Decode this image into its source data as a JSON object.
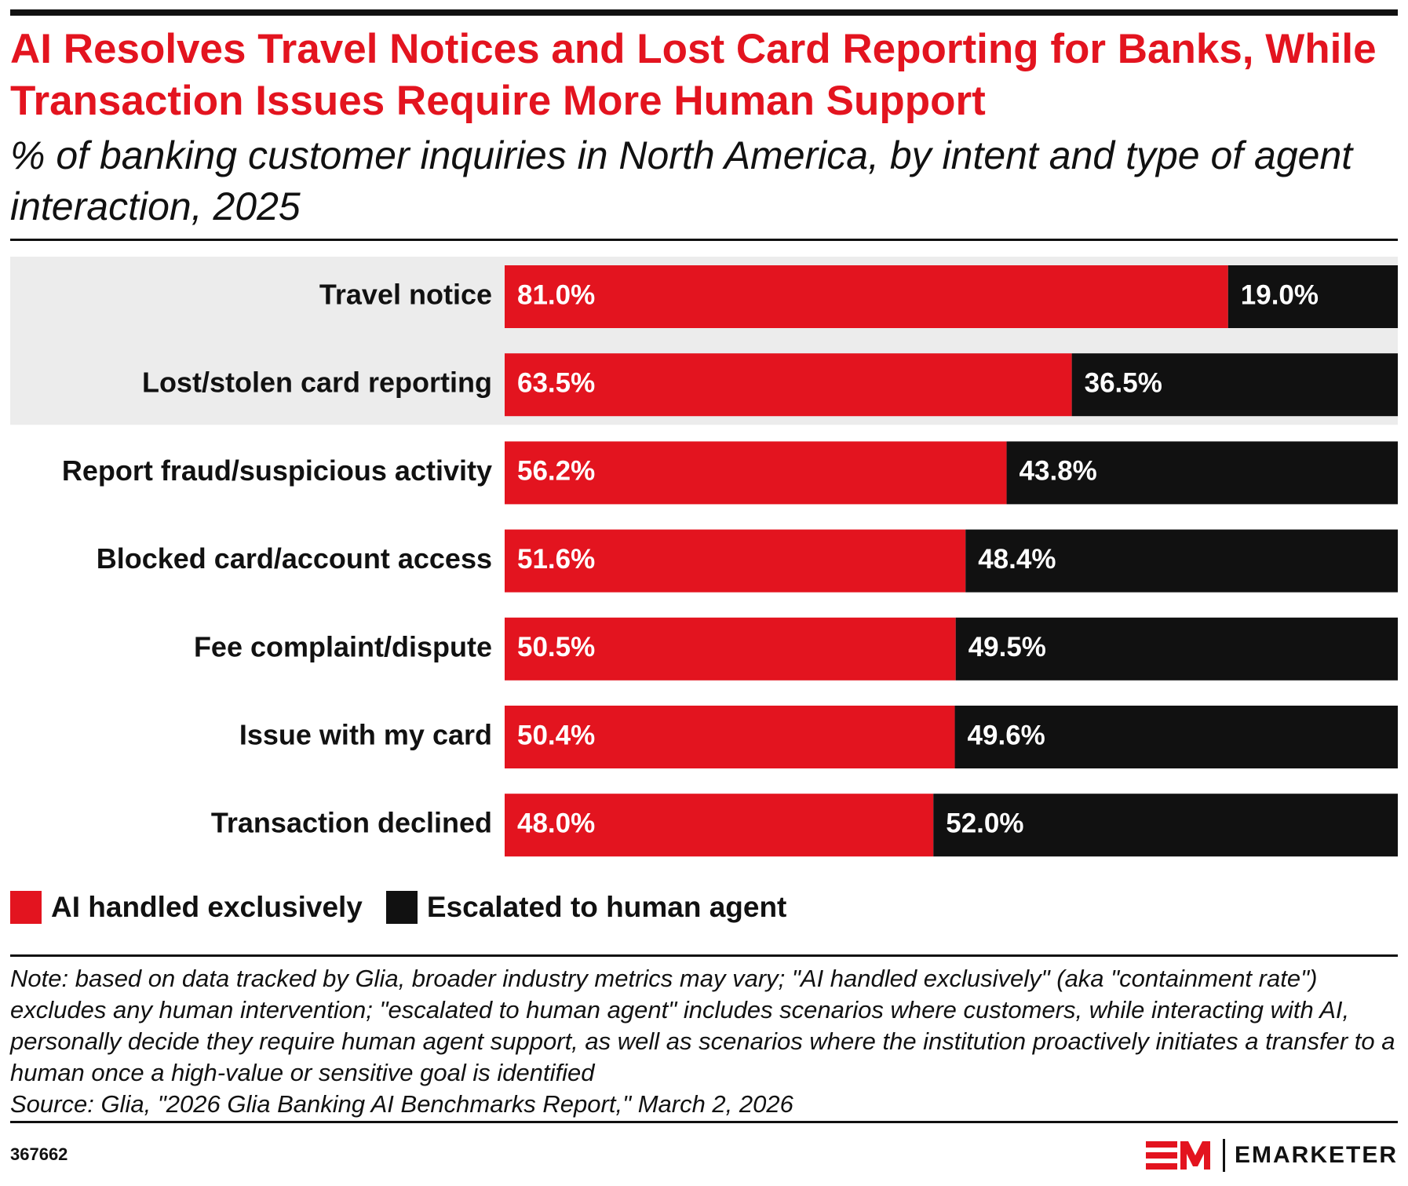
{
  "header": {
    "title": "AI Resolves Travel Notices and Lost Card Reporting for Banks, While Transaction Issues Require More Human Support",
    "subtitle": "% of banking customer inquiries in North America, by intent and type of agent interaction, 2025"
  },
  "chart_data": {
    "type": "bar",
    "orientation": "horizontal",
    "stacked": true,
    "categories": [
      "Travel notice",
      "Lost/stolen card reporting",
      "Report fraud/suspicious activity",
      "Blocked card/account access",
      "Fee complaint/dispute",
      "Issue with my card",
      "Transaction declined"
    ],
    "series": [
      {
        "name": "AI handled exclusively",
        "color": "#e3141f",
        "values": [
          81.0,
          63.5,
          56.2,
          51.6,
          50.5,
          50.4,
          48.0
        ]
      },
      {
        "name": "Escalated to human agent",
        "color": "#111111",
        "values": [
          19.0,
          36.5,
          43.8,
          48.4,
          49.5,
          49.6,
          52.0
        ]
      }
    ],
    "value_format": "percent_one_decimal",
    "xlim": [
      0,
      100
    ],
    "highlighted_categories": [
      "Travel notice",
      "Lost/stolen card reporting"
    ],
    "highlight_color": "#ececec",
    "legend_position": "bottom-left",
    "grid": false
  },
  "legend": {
    "items": [
      {
        "label": "AI handled exclusively",
        "color": "#e3141f"
      },
      {
        "label": "Escalated to human agent",
        "color": "#111111"
      }
    ]
  },
  "footer": {
    "note": "Note: based on data tracked by Glia, broader industry metrics may vary; \"AI handled exclusively\" (aka \"containment rate\") excludes any human intervention; \"escalated to human agent\" includes scenarios where customers, while interacting with AI, personally decide they require human agent support, as well as scenarios where the institution proactively initiates a transfer to a human once a high-value or sensitive goal is identified",
    "source": "Source: Glia, \"2026 Glia Banking AI Benchmarks Report,\" March 2, 2026",
    "chart_id": "367662",
    "brand": "EMARKETER"
  }
}
